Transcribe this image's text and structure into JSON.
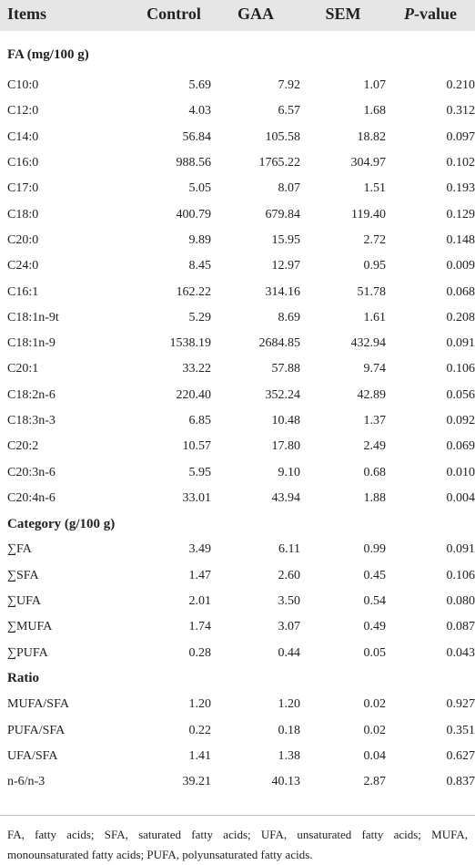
{
  "header": [
    "Items",
    "Control",
    "GAA",
    "SEM",
    "P-value"
  ],
  "sections": [
    {
      "title": "FA (mg/100 g)",
      "rows": [
        [
          "C10:0",
          "5.69",
          "7.92",
          "1.07",
          "0.210"
        ],
        [
          "C12:0",
          "4.03",
          "6.57",
          "1.68",
          "0.312"
        ],
        [
          "C14:0",
          "56.84",
          "105.58",
          "18.82",
          "0.097"
        ],
        [
          "C16:0",
          "988.56",
          "1765.22",
          "304.97",
          "0.102"
        ],
        [
          "C17:0",
          "5.05",
          "8.07",
          "1.51",
          "0.193"
        ],
        [
          "C18:0",
          "400.79",
          "679.84",
          "119.40",
          "0.129"
        ],
        [
          "C20:0",
          "9.89",
          "15.95",
          "2.72",
          "0.148"
        ],
        [
          "C24:0",
          "8.45",
          "12.97",
          "0.95",
          "0.009"
        ],
        [
          "C16:1",
          "162.22",
          "314.16",
          "51.78",
          "0.068"
        ],
        [
          "C18:1n-9t",
          "5.29",
          "8.69",
          "1.61",
          "0.208"
        ],
        [
          "C18:1n-9",
          "1538.19",
          "2684.85",
          "432.94",
          "0.091"
        ],
        [
          "C20:1",
          "33.22",
          "57.88",
          "9.74",
          "0.106"
        ],
        [
          "C18:2n-6",
          "220.40",
          "352.24",
          "42.89",
          "0.056"
        ],
        [
          "C18:3n-3",
          "6.85",
          "10.48",
          "1.37",
          "0.092"
        ],
        [
          "C20:2",
          "10.57",
          "17.80",
          "2.49",
          "0.069"
        ],
        [
          "C20:3n-6",
          "5.95",
          "9.10",
          "0.68",
          "0.010"
        ],
        [
          "C20:4n-6",
          "33.01",
          "43.94",
          "1.88",
          "0.004"
        ]
      ]
    },
    {
      "title": "Category (g/100 g)",
      "rows": [
        [
          "∑FA",
          "3.49",
          "6.11",
          "0.99",
          "0.091"
        ],
        [
          "∑SFA",
          "1.47",
          "2.60",
          "0.45",
          "0.106"
        ],
        [
          "∑UFA",
          "2.01",
          "3.50",
          "0.54",
          "0.080"
        ],
        [
          "∑MUFA",
          "1.74",
          "3.07",
          "0.49",
          "0.087"
        ],
        [
          "∑PUFA",
          "0.28",
          "0.44",
          "0.05",
          "0.043"
        ]
      ]
    },
    {
      "title": "Ratio",
      "rows": [
        [
          "MUFA/SFA",
          "1.20",
          "1.20",
          "0.02",
          "0.927"
        ],
        [
          "PUFA/SFA",
          "0.22",
          "0.18",
          "0.02",
          "0.351"
        ],
        [
          "UFA/SFA",
          "1.41",
          "1.38",
          "0.04",
          "0.627"
        ],
        [
          "n-6/n-3",
          "39.21",
          "40.13",
          "2.87",
          "0.837"
        ]
      ]
    }
  ],
  "footnote": "FA, fatty acids; SFA, saturated fatty acids; UFA, unsaturated fatty acids; MUFA, monounsaturated fatty acids; PUFA, polyunsaturated fatty acids."
}
